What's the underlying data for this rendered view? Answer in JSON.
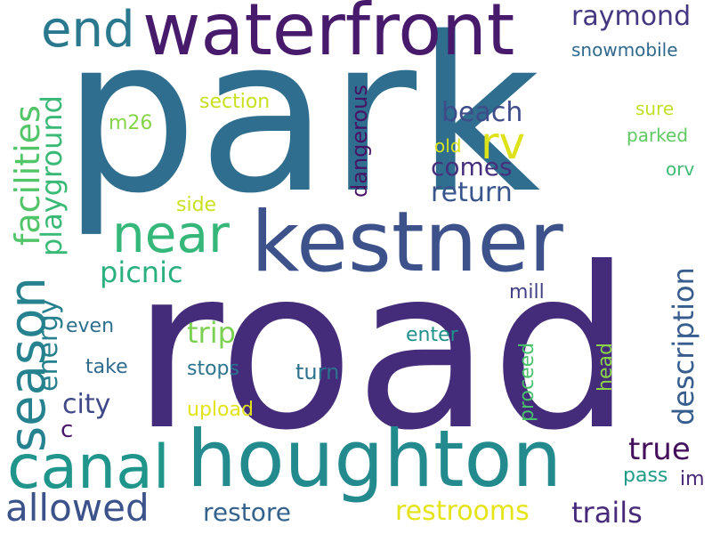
{
  "words": {
    "park": {
      "text": "park",
      "color": "#2f6e8e"
    },
    "road": {
      "text": "road",
      "color": "#452c7a"
    },
    "waterfront": {
      "text": "waterfront",
      "color": "#481a6c"
    },
    "end": {
      "text": "end",
      "color": "#2a788e"
    },
    "kestner": {
      "text": "kestner",
      "color": "#3d528a"
    },
    "houghton": {
      "text": "houghton",
      "color": "#238a8d"
    },
    "canal": {
      "text": "canal",
      "color": "#20958b"
    },
    "allowed": {
      "text": "allowed",
      "color": "#3b528b"
    },
    "season": {
      "text": "season",
      "color": "#26828e"
    },
    "near": {
      "text": "near",
      "color": "#35b779"
    },
    "rv": {
      "text": "rv",
      "color": "#dde318"
    },
    "raymond": {
      "text": "raymond",
      "color": "#453781"
    },
    "snowmobile": {
      "text": "snowmobile",
      "color": "#30688e"
    },
    "beach": {
      "text": "beach",
      "color": "#3e4c8a"
    },
    "comes": {
      "text": "comes",
      "color": "#46307d"
    },
    "return": {
      "text": "return",
      "color": "#39568c"
    },
    "sure": {
      "text": "sure",
      "color": "#c0df25"
    },
    "parked": {
      "text": "parked",
      "color": "#5ec962"
    },
    "orv": {
      "text": "orv",
      "color": "#3fbc73"
    },
    "old": {
      "text": "old",
      "color": "#d8e219"
    },
    "section": {
      "text": "section",
      "color": "#c8e020"
    },
    "m26": {
      "text": "m26",
      "color": "#86d549"
    },
    "side": {
      "text": "side",
      "color": "#cae11f"
    },
    "facilities": {
      "text": "facilities",
      "color": "#52c569"
    },
    "playground": {
      "text": "playground",
      "color": "#3aba76"
    },
    "picnic": {
      "text": "picnic",
      "color": "#2ab07f"
    },
    "energy": {
      "text": "energy",
      "color": "#27808e"
    },
    "dangerous": {
      "text": "dangerous",
      "color": "#471365"
    },
    "trip": {
      "text": "trip",
      "color": "#7ad151"
    },
    "stops": {
      "text": "stops",
      "color": "#2c738e"
    },
    "upload": {
      "text": "upload",
      "color": "#e2e418"
    },
    "even": {
      "text": "even",
      "color": "#2e6f8e"
    },
    "take": {
      "text": "take",
      "color": "#2f6b8e"
    },
    "city": {
      "text": "city",
      "color": "#3f4889"
    },
    "c": {
      "text": "c",
      "color": "#481769"
    },
    "mill": {
      "text": "mill",
      "color": "#424086"
    },
    "enter": {
      "text": "enter",
      "color": "#21918c"
    },
    "turn": {
      "text": "turn",
      "color": "#2d718e"
    },
    "description": {
      "text": "description",
      "color": "#365d8d"
    },
    "proceed": {
      "text": "proceed",
      "color": "#4ac16d"
    },
    "head": {
      "text": "head",
      "color": "#8bd646"
    },
    "true": {
      "text": "true",
      "color": "#440f5b"
    },
    "pass": {
      "text": "pass",
      "color": "#1e9c89"
    },
    "im": {
      "text": "im",
      "color": "#482576"
    },
    "restore": {
      "text": "restore",
      "color": "#33628d"
    },
    "restrooms": {
      "text": "restrooms",
      "color": "#e5e419"
    },
    "trails": {
      "text": "trails",
      "color": "#472a7a"
    }
  }
}
